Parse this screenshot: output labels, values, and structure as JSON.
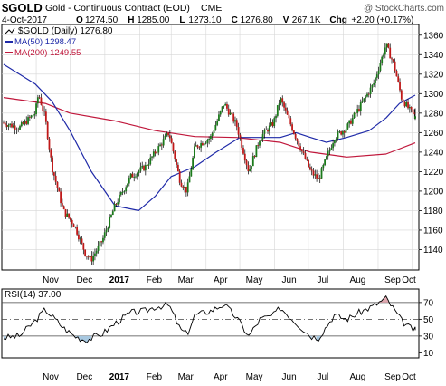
{
  "header": {
    "symbol": "$GOLD",
    "name": "Gold - Continuous Contract (EOD)",
    "exchange": "CME",
    "copyright": "@ StockCharts.com",
    "date": "4-Oct-2017",
    "ohlc": [
      {
        "label": "O",
        "value": "1274.50"
      },
      {
        "label": "H",
        "value": "1285.00"
      },
      {
        "label": "L",
        "value": "1273.10"
      },
      {
        "label": "C",
        "value": "1276.80"
      },
      {
        "label": "V",
        "value": "267.1K"
      },
      {
        "label": "Chg",
        "value": "+2.20 (+0.17%)"
      }
    ]
  },
  "chart_data": [
    {
      "type": "candlestick",
      "title": "$GOLD (Daily) 1276.80",
      "ylim": [
        1120,
        1370
      ],
      "y_ticks": [
        1140,
        1160,
        1180,
        1200,
        1220,
        1240,
        1260,
        1280,
        1300,
        1320,
        1340,
        1360
      ],
      "x_labels": [
        "Nov",
        "Dec",
        "2017",
        "Feb",
        "Mar",
        "Apr",
        "May",
        "Jun",
        "Jul",
        "Aug",
        "Sep",
        "Oct"
      ],
      "grid": true,
      "legend": [
        {
          "label": "$GOLD (Daily) 1276.80",
          "color": "#000000"
        },
        {
          "label": "MA(50) 1298.47",
          "color": "#1f2aa8"
        },
        {
          "label": "MA(200) 1249.55",
          "color": "#c0183c"
        }
      ],
      "series": [
        {
          "name": "$GOLD (Daily)",
          "kind": "close",
          "x": [
            "Oct 3",
            "Oct 17",
            "Oct 31",
            "Nov 3",
            "Nov 9",
            "Nov 15",
            "Nov 25",
            "Dec 5",
            "Dec 15",
            "Dec 20",
            "Dec 30",
            "Jan 10",
            "Jan 24",
            "Feb 6",
            "Feb 15",
            "Feb 27",
            "Mar 9",
            "Mar 15",
            "Mar 22",
            "Apr 5",
            "Apr 17",
            "Apr 28",
            "May 9",
            "May 19",
            "May 31",
            "Jun 6",
            "Jun 20",
            "Jul 3",
            "Jul 10",
            "Jul 24",
            "Aug 4",
            "Aug 15",
            "Aug 28",
            "Sep 8",
            "Sep 15",
            "Sep 22",
            "Sep 29",
            "Oct 4"
          ],
          "values": [
            1270,
            1265,
            1280,
            1300,
            1275,
            1225,
            1180,
            1165,
            1135,
            1130,
            1150,
            1185,
            1215,
            1225,
            1240,
            1260,
            1210,
            1200,
            1245,
            1255,
            1290,
            1268,
            1220,
            1255,
            1270,
            1295,
            1255,
            1220,
            1212,
            1255,
            1265,
            1285,
            1310,
            1350,
            1330,
            1295,
            1283,
            1276.8
          ]
        },
        {
          "name": "MA(50)",
          "kind": "line",
          "color": "#1f2aa8",
          "x": [
            "Oct 3",
            "Oct 31",
            "Nov 15",
            "Dec 1",
            "Dec 20",
            "Jan 10",
            "Jan 31",
            "Feb 15",
            "Mar 1",
            "Mar 22",
            "Apr 10",
            "May 1",
            "May 19",
            "Jun 6",
            "Jun 20",
            "Jul 3",
            "Jul 17",
            "Aug 4",
            "Aug 24",
            "Sep 8",
            "Sep 20",
            "Oct 4"
          ],
          "values": [
            1330,
            1310,
            1292,
            1262,
            1220,
            1185,
            1180,
            1195,
            1215,
            1225,
            1240,
            1255,
            1255,
            1255,
            1260,
            1255,
            1250,
            1255,
            1262,
            1275,
            1290,
            1298.47
          ]
        },
        {
          "name": "MA(200)",
          "kind": "line",
          "color": "#c0183c",
          "x": [
            "Oct 3",
            "Nov 9",
            "Dec 1",
            "Jan 10",
            "Feb 15",
            "Mar 22",
            "Apr 28",
            "Jun 6",
            "Jul 3",
            "Aug 4",
            "Sep 8",
            "Oct 4"
          ],
          "values": [
            1296,
            1290,
            1280,
            1272,
            1262,
            1256,
            1255,
            1250,
            1240,
            1235,
            1238,
            1249.55
          ]
        }
      ]
    },
    {
      "type": "line",
      "title": "RSI(14) 37.00",
      "ylim": [
        5,
        85
      ],
      "y_ticks": [
        10,
        30,
        50,
        70
      ],
      "reference_lines": [
        70,
        50,
        30
      ],
      "x_labels": [
        "Nov",
        "Dec",
        "2017",
        "Feb",
        "Mar",
        "Apr",
        "May",
        "Jun",
        "Jul",
        "Aug",
        "Sep",
        "Oct"
      ],
      "series": [
        {
          "name": "RSI(14)",
          "x": [
            "Oct 3",
            "Oct 17",
            "Oct 31",
            "Nov 9",
            "Nov 25",
            "Dec 5",
            "Dec 15",
            "Dec 30",
            "Jan 10",
            "Jan 24",
            "Feb 6",
            "Feb 15",
            "Feb 27",
            "Mar 9",
            "Mar 15",
            "Mar 22",
            "Apr 5",
            "Apr 17",
            "Apr 28",
            "May 9",
            "May 19",
            "May 31",
            "Jun 6",
            "Jun 20",
            "Jul 3",
            "Jul 10",
            "Jul 24",
            "Aug 4",
            "Aug 15",
            "Aug 28",
            "Sep 8",
            "Sep 15",
            "Sep 22",
            "Sep 29",
            "Oct 4"
          ],
          "values": [
            28,
            30,
            48,
            62,
            40,
            30,
            25,
            33,
            45,
            58,
            60,
            65,
            67,
            38,
            32,
            55,
            60,
            68,
            52,
            30,
            50,
            55,
            64,
            46,
            30,
            28,
            55,
            50,
            58,
            66,
            75,
            62,
            48,
            40,
            37
          ]
        }
      ]
    }
  ]
}
